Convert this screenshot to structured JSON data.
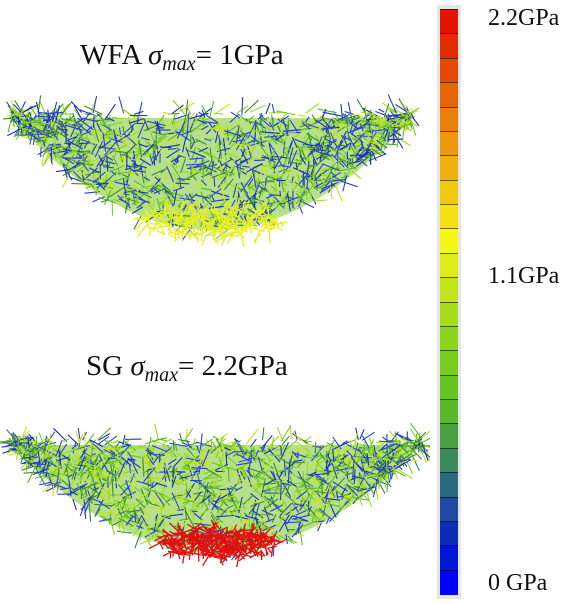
{
  "panels": [
    {
      "label_prefix": "WFA",
      "sigma": "σ",
      "subscript": "max",
      "value": "= 1GPa",
      "hotspot_color": "#e8f020"
    },
    {
      "label_prefix": "SG",
      "sigma": "σ",
      "subscript": "max",
      "value": "= 2.2GPa",
      "hotspot_color": "#e01010"
    }
  ],
  "colorbar": {
    "label_max": "2.2GPa",
    "label_mid": "1.1GPa",
    "label_min": "0 GPa",
    "colors": [
      "#0000ff",
      "#0016d8",
      "#0a2cb8",
      "#1e4aa0",
      "#2a6a80",
      "#3a8a5a",
      "#4aa040",
      "#5ab82a",
      "#66c420",
      "#78cc1e",
      "#8ed41c",
      "#a6dc1a",
      "#c2e418",
      "#dcee16",
      "#f4f614",
      "#f2e012",
      "#f0c810",
      "#eeb00e",
      "#ec980c",
      "#ea800a",
      "#e86408",
      "#e64806",
      "#e42c04",
      "#e21402"
    ]
  },
  "mesh_palette": [
    "#1830c8",
    "#2a3fd8",
    "#3a8a3a",
    "#58b82a",
    "#7cd020",
    "#9cdc1a",
    "#c4e418"
  ]
}
